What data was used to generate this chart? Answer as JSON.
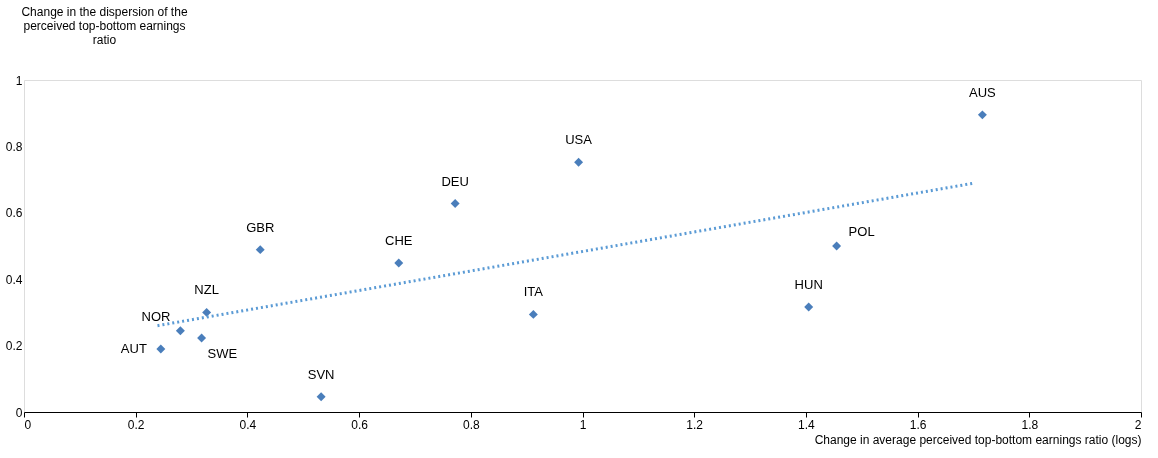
{
  "chart_data": {
    "type": "scatter",
    "xlabel": "Change in average perceived top-bottom earnings ratio (logs)",
    "ylabel": "Change in the dispersion of the perceived top-bottom earnings ratio",
    "x": [
      0.245,
      0.28,
      0.327,
      0.318,
      0.423,
      0.532,
      0.671,
      0.772,
      0.912,
      0.993,
      1.405,
      1.455,
      1.716
    ],
    "series": [
      {
        "color": "#4a7ebb",
        "marker": "diamond",
        "values": [
          0.19,
          0.245,
          0.3,
          0.223,
          0.489,
          0.046,
          0.449,
          0.628,
          0.294,
          0.752,
          0.316,
          0.5,
          0.895
        ]
      },
      {
        "type": "line",
        "color": "#5b9bd5",
        "line_style": "dotted",
        "x": [
          0.239,
          1.703
        ],
        "values": [
          0.26,
          0.69
        ]
      }
    ],
    "annotations": [
      {
        "text": "AUT",
        "x": 0.245,
        "y": 0.19
      },
      {
        "text": "NOR",
        "x": 0.28,
        "y": 0.245
      },
      {
        "text": "NZL",
        "x": 0.327,
        "y": 0.3
      },
      {
        "text": "SWE",
        "x": 0.318,
        "y": 0.223
      },
      {
        "text": "GBR",
        "x": 0.423,
        "y": 0.489
      },
      {
        "text": "SVN",
        "x": 0.532,
        "y": 0.046
      },
      {
        "text": "CHE",
        "x": 0.671,
        "y": 0.449
      },
      {
        "text": "DEU",
        "x": 0.772,
        "y": 0.628
      },
      {
        "text": "ITA",
        "x": 0.912,
        "y": 0.294
      },
      {
        "text": "USA",
        "x": 0.993,
        "y": 0.752
      },
      {
        "text": "HUN",
        "x": 1.405,
        "y": 0.316
      },
      {
        "text": "POL",
        "x": 1.455,
        "y": 0.5
      },
      {
        "text": "AUS",
        "x": 1.716,
        "y": 0.895
      }
    ],
    "xlim": [
      0,
      2
    ],
    "xticks": [
      0,
      0.2,
      0.4,
      0.6,
      0.8,
      1,
      1.2,
      1.4,
      1.6,
      1.8,
      2
    ],
    "ylim": [
      0,
      1
    ],
    "yticks": [
      0,
      0.2,
      0.4,
      0.6,
      0.8,
      1
    ],
    "grid": false
  }
}
